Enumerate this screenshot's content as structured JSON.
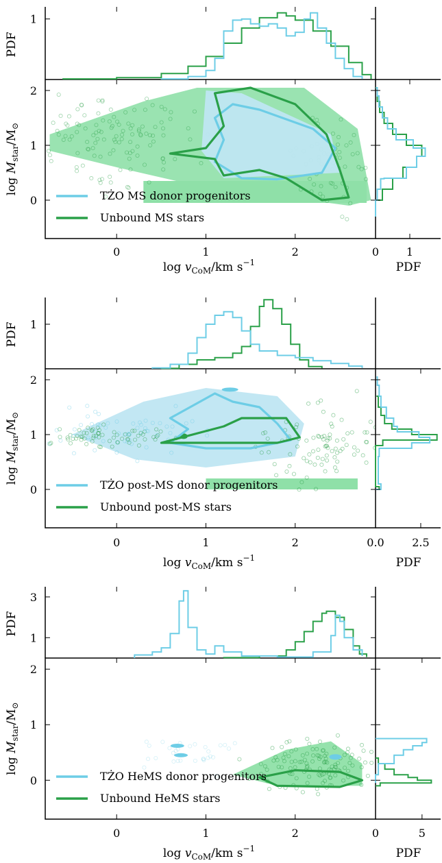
{
  "colors": {
    "tzo": "#6dcde6",
    "unbound": "#2aa048",
    "tzo_fill": "#bfe6f2",
    "unbound_fill": "#8fe0a8"
  },
  "chart_data": [
    {
      "type": "scatter",
      "panel": "MS",
      "legend": [
        "TŻO MS donor progenitors",
        "Unbound MS stars"
      ],
      "legend_position": "lower-left",
      "xlabel": "log v_CoM/km s^-1",
      "ylabel": "log M_star/M_⊙",
      "xlim": [
        -0.8,
        2.9
      ],
      "ylim": [
        -0.7,
        2.2
      ],
      "xticks": [
        "0",
        "1",
        "2"
      ],
      "yticks": [
        "0",
        "1",
        "2"
      ],
      "top_hist": {
        "ylabel": "PDF",
        "yticks": [
          "1"
        ],
        "ylim": [
          0,
          1.2
        ],
        "tzo": [
          [
            0.5,
            0.01
          ],
          [
            0.8,
            0.05
          ],
          [
            1.0,
            0.15
          ],
          [
            1.1,
            0.35
          ],
          [
            1.2,
            0.8
          ],
          [
            1.3,
            0.98
          ],
          [
            1.4,
            1.0
          ],
          [
            1.5,
            0.92
          ],
          [
            1.6,
            0.88
          ],
          [
            1.7,
            0.92
          ],
          [
            1.8,
            0.85
          ],
          [
            1.9,
            0.72
          ],
          [
            2.0,
            0.78
          ],
          [
            2.1,
            1.0
          ],
          [
            2.17,
            1.1
          ],
          [
            2.25,
            0.85
          ],
          [
            2.35,
            0.6
          ],
          [
            2.45,
            0.35
          ],
          [
            2.55,
            0.18
          ],
          [
            2.65,
            0.05
          ],
          [
            2.75,
            0.01
          ]
        ],
        "unbound": [
          [
            -0.6,
            0.01
          ],
          [
            0.0,
            0.03
          ],
          [
            0.5,
            0.1
          ],
          [
            0.8,
            0.22
          ],
          [
            1.0,
            0.38
          ],
          [
            1.2,
            0.6
          ],
          [
            1.4,
            0.85
          ],
          [
            1.6,
            1.02
          ],
          [
            1.8,
            1.1
          ],
          [
            1.9,
            1.05
          ],
          [
            2.0,
            0.98
          ],
          [
            2.2,
            0.8
          ],
          [
            2.4,
            0.55
          ],
          [
            2.6,
            0.28
          ],
          [
            2.75,
            0.08
          ],
          [
            2.85,
            0.01
          ]
        ]
      },
      "right_hist": {
        "xlabel": "PDF",
        "xticks": [
          "0",
          "1"
        ],
        "xlim": [
          0,
          1.9
        ],
        "tzo": [
          [
            -0.3,
            0.0
          ],
          [
            0.0,
            0.05
          ],
          [
            0.2,
            0.15
          ],
          [
            0.39,
            0.25
          ],
          [
            0.4,
            0.9
          ],
          [
            0.6,
            1.2
          ],
          [
            0.8,
            1.45
          ],
          [
            0.95,
            1.1
          ],
          [
            1.1,
            0.6
          ],
          [
            1.3,
            0.35
          ],
          [
            1.5,
            0.2
          ],
          [
            1.7,
            0.1
          ],
          [
            1.9,
            0.05
          ],
          [
            2.05,
            0.01
          ]
        ],
        "unbound": [
          [
            -0.1,
            0.0
          ],
          [
            0.0,
            0.2
          ],
          [
            0.2,
            0.5
          ],
          [
            0.4,
            0.8
          ],
          [
            0.6,
            1.2
          ],
          [
            0.8,
            1.35
          ],
          [
            1.0,
            0.9
          ],
          [
            1.2,
            0.5
          ],
          [
            1.4,
            0.25
          ],
          [
            1.6,
            0.12
          ],
          [
            1.8,
            0.05
          ],
          [
            2.05,
            0.0
          ]
        ]
      }
    },
    {
      "type": "scatter",
      "panel": "post-MS",
      "legend": [
        "TŻO post-MS donor progenitors",
        "Unbound post-MS stars"
      ],
      "legend_position": "lower-left",
      "xlabel": "log v_CoM/km s^-1",
      "ylabel": "log M_star/M_⊙",
      "xlim": [
        -0.8,
        2.9
      ],
      "ylim": [
        -0.7,
        2.2
      ],
      "xticks": [
        "0",
        "1",
        "2"
      ],
      "yticks": [
        "0",
        "1",
        "2"
      ],
      "top_hist": {
        "ylabel": "PDF",
        "yticks": [
          "1"
        ],
        "ylim": [
          0,
          1.6
        ],
        "tzo": [
          [
            0.4,
            0.02
          ],
          [
            0.6,
            0.1
          ],
          [
            0.8,
            0.35
          ],
          [
            0.9,
            0.7
          ],
          [
            1.0,
            1.0
          ],
          [
            1.1,
            1.2
          ],
          [
            1.2,
            1.28
          ],
          [
            1.3,
            1.15
          ],
          [
            1.4,
            0.85
          ],
          [
            1.5,
            0.55
          ],
          [
            1.6,
            0.4
          ],
          [
            1.8,
            0.3
          ],
          [
            2.0,
            0.25
          ],
          [
            2.2,
            0.18
          ],
          [
            2.4,
            0.12
          ],
          [
            2.6,
            0.06
          ],
          [
            2.75,
            0.02
          ]
        ],
        "unbound": [
          [
            0.5,
            0.01
          ],
          [
            0.7,
            0.1
          ],
          [
            0.9,
            0.2
          ],
          [
            1.1,
            0.25
          ],
          [
            1.3,
            0.35
          ],
          [
            1.4,
            0.5
          ],
          [
            1.5,
            0.95
          ],
          [
            1.6,
            1.4
          ],
          [
            1.65,
            1.55
          ],
          [
            1.75,
            1.35
          ],
          [
            1.85,
            1.0
          ],
          [
            1.95,
            0.55
          ],
          [
            2.05,
            0.2
          ],
          [
            2.15,
            0.05
          ],
          [
            2.3,
            0.01
          ]
        ]
      },
      "right_hist": {
        "xlabel": "PDF",
        "xticks": [
          "0.0",
          "2.5"
        ],
        "xlim": [
          0,
          3.6
        ],
        "tzo": [
          [
            0.0,
            0.3
          ],
          [
            0.1,
            0.15
          ],
          [
            0.6,
            0.2
          ],
          [
            0.75,
            2.0
          ],
          [
            0.85,
            3.0
          ],
          [
            0.95,
            2.4
          ],
          [
            1.05,
            1.2
          ],
          [
            1.15,
            1.0
          ],
          [
            1.3,
            0.6
          ],
          [
            1.5,
            0.3
          ],
          [
            1.7,
            0.2
          ],
          [
            1.9,
            0.1
          ],
          [
            2.05,
            0.05
          ]
        ],
        "unbound": [
          [
            0.0,
            0.2
          ],
          [
            0.05,
            0.0
          ],
          [
            0.8,
            0.4
          ],
          [
            0.9,
            3.4
          ],
          [
            1.0,
            2.0
          ],
          [
            1.1,
            0.9
          ],
          [
            1.2,
            0.5
          ],
          [
            1.35,
            0.3
          ],
          [
            1.5,
            0.15
          ],
          [
            1.7,
            0.05
          ]
        ]
      }
    },
    {
      "type": "scatter",
      "panel": "HeMS",
      "legend": [
        "TŻO HeMS donor progenitors",
        "Unbound HeMS stars"
      ],
      "legend_position": "lower-left",
      "xlabel": "log v_CoM/km s^-1",
      "ylabel": "log M_star/M_⊙",
      "xlim": [
        -0.8,
        2.9
      ],
      "ylim": [
        -0.7,
        2.2
      ],
      "xticks": [
        "0",
        "1",
        "2"
      ],
      "yticks": [
        "0",
        "1",
        "2"
      ],
      "top_hist": {
        "ylabel": "PDF",
        "yticks": [
          "1",
          "3"
        ],
        "ylim": [
          0,
          3.5
        ],
        "tzo": [
          [
            0.2,
            0.15
          ],
          [
            0.4,
            0.3
          ],
          [
            0.5,
            0.5
          ],
          [
            0.6,
            1.2
          ],
          [
            0.7,
            2.8
          ],
          [
            0.75,
            3.3
          ],
          [
            0.8,
            1.5
          ],
          [
            0.9,
            0.4
          ],
          [
            1.0,
            0.2
          ],
          [
            1.1,
            0.6
          ],
          [
            1.2,
            0.3
          ],
          [
            1.4,
            0.1
          ],
          [
            1.8,
            0.05
          ],
          [
            2.2,
            0.3
          ],
          [
            2.4,
            1.1
          ],
          [
            2.45,
            2.1
          ],
          [
            2.5,
            1.8
          ],
          [
            2.55,
            1.0
          ],
          [
            2.65,
            0.4
          ],
          [
            2.75,
            0.1
          ]
        ],
        "unbound": [
          [
            1.2,
            0.02
          ],
          [
            1.6,
            0.1
          ],
          [
            1.9,
            0.4
          ],
          [
            2.0,
            0.8
          ],
          [
            2.1,
            1.3
          ],
          [
            2.2,
            1.8
          ],
          [
            2.3,
            2.2
          ],
          [
            2.35,
            2.3
          ],
          [
            2.45,
            2.0
          ],
          [
            2.55,
            1.4
          ],
          [
            2.65,
            0.6
          ],
          [
            2.72,
            0.2
          ],
          [
            2.8,
            0.05
          ]
        ]
      },
      "right_hist": {
        "xlabel": "PDF",
        "xticks": [
          "0",
          "5"
        ],
        "xlim": [
          0,
          7
        ],
        "tzo": [
          [
            -0.05,
            0.0
          ],
          [
            0.1,
            0.3
          ],
          [
            0.3,
            2.0
          ],
          [
            0.45,
            3.0
          ],
          [
            0.55,
            4.0
          ],
          [
            0.62,
            5.0
          ],
          [
            0.68,
            5.5
          ],
          [
            0.75,
            0.0
          ]
        ],
        "unbound": [
          [
            -0.1,
            0.5
          ],
          [
            -0.05,
            6.0
          ],
          [
            0.0,
            4.5
          ],
          [
            0.05,
            3.5
          ],
          [
            0.1,
            2.0
          ],
          [
            0.2,
            1.0
          ],
          [
            0.3,
            0.3
          ],
          [
            0.4,
            0.0
          ]
        ]
      }
    }
  ]
}
